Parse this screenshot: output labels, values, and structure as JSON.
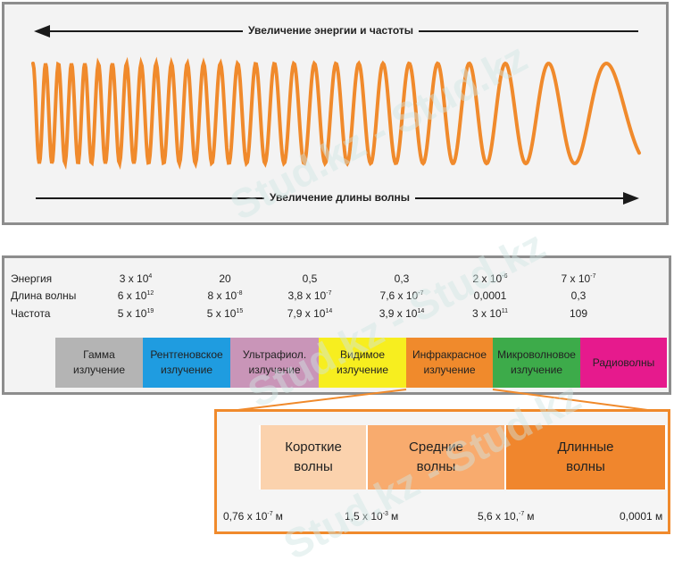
{
  "top": {
    "energy_frequency_label": "Увеличение энергии  и частоты",
    "wavelength_label": "Увеличение длины волны"
  },
  "table": {
    "rows": [
      {
        "label": "Энергия",
        "values": [
          {
            "base": "3 x 10",
            "exp": "4"
          },
          {
            "base": "20",
            "exp": ""
          },
          {
            "base": "0,5",
            "exp": ""
          },
          {
            "base": "0,3",
            "exp": ""
          },
          {
            "base": "2 x 10",
            "exp": "-6"
          },
          {
            "base": "7 x 10",
            "exp": "-7"
          }
        ]
      },
      {
        "label": "Длина волны",
        "values": [
          {
            "base": "6 x 10",
            "exp": "12"
          },
          {
            "base": "8 x 10",
            "exp": "-8"
          },
          {
            "base": "3,8 x 10",
            "exp": "-7"
          },
          {
            "base": "7,6 x 10",
            "exp": "-7"
          },
          {
            "base": "0,0001",
            "exp": ""
          },
          {
            "base": "0,3",
            "exp": ""
          }
        ]
      },
      {
        "label": "Частота",
        "values": [
          {
            "base": "5 x 10",
            "exp": "19"
          },
          {
            "base": "5 x 10",
            "exp": "15"
          },
          {
            "base": "7,9 x 10",
            "exp": "14"
          },
          {
            "base": "3,9 x 10",
            "exp": "14"
          },
          {
            "base": "3 x 10",
            "exp": "11"
          },
          {
            "base": "109",
            "exp": ""
          }
        ]
      }
    ]
  },
  "bands": [
    {
      "line1": "Гамма",
      "line2": "излучение",
      "color": "#b4b4b4"
    },
    {
      "line1": "Рентгеновское",
      "line2": "излучение",
      "color": "#1f9ce0"
    },
    {
      "line1": "Ультрафиол.",
      "line2": "излучение",
      "color": "#c995b8"
    },
    {
      "line1": "Видимое",
      "line2": "излучение",
      "color": "#f7ee1f"
    },
    {
      "line1": "Инфракрасное",
      "line2": "излучение",
      "color": "#f08a2c"
    },
    {
      "line1": "Микроволновое",
      "line2": "излучение",
      "color": "#3dab4a"
    },
    {
      "line1": "Радиоволны",
      "line2": "",
      "color": "#e61a8d"
    }
  ],
  "infrared": {
    "bands": [
      {
        "line1": "Короткие",
        "line2": "волны",
        "color": "#fbd2ad"
      },
      {
        "line1": "Средние",
        "line2": "волны",
        "color": "#f8ab6e"
      },
      {
        "line1": "Длинные",
        "line2": "волны",
        "color": "#f0862d"
      }
    ],
    "ticks": [
      {
        "base": "0,76 x 10",
        "exp": "-7",
        "unit": "м"
      },
      {
        "base": "1,5 x 10",
        "exp": "-3",
        "unit": "м"
      },
      {
        "base": "5,6 x 10,",
        "exp": "-7",
        "unit": "м"
      },
      {
        "base": "0,0001 м",
        "exp": "",
        "unit": ""
      }
    ]
  },
  "watermark": "Stud.kz - Stud.kz",
  "colors": {
    "wave": "#f08a2c",
    "frame": "#8d8d8d",
    "accent_frame": "#f08a2c"
  }
}
